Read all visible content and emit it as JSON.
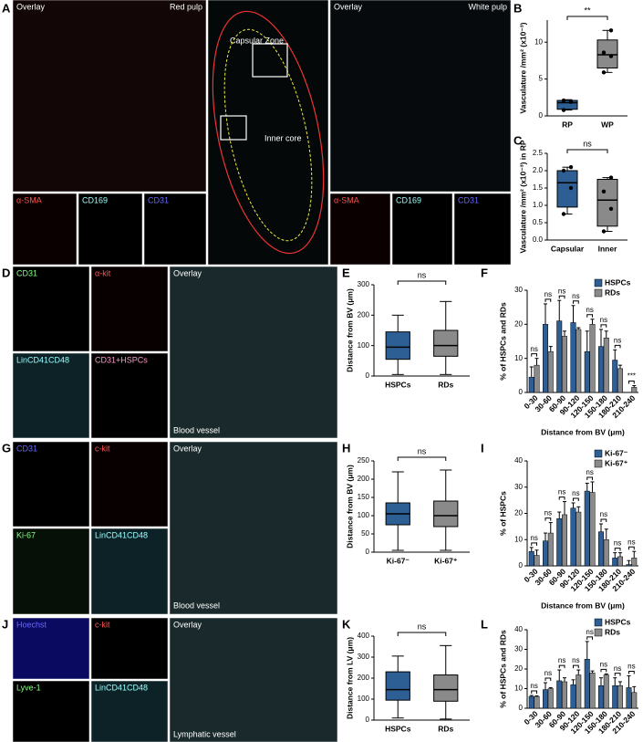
{
  "figure": {
    "image_panels": [
      {
        "letter": "A",
        "tiles": [
          "Overlay",
          "Red pulp",
          "α-SMA",
          "CD169",
          "CD31",
          "Capsular Zone",
          "Inner core",
          "Overlay",
          "White pulp",
          "α-SMA",
          "CD169",
          "CD31"
        ]
      },
      {
        "letter": "D",
        "tiles": [
          "CD31",
          "α-kit",
          "LinCD41CD48",
          "CD31+HSPCs",
          "Overlay",
          "Blood vessel"
        ]
      },
      {
        "letter": "G",
        "tiles": [
          "CD31",
          "c-kit",
          "Ki-67",
          "LinCD41CD48",
          "Overlay",
          "Blood vessel"
        ]
      },
      {
        "letter": "J",
        "tiles": [
          "Hoechst",
          "c-kit",
          "Lyve-1",
          "LinCD41CD48",
          "Overlay",
          "Lymphatic vessel"
        ]
      }
    ],
    "charts": [
      {
        "letter": "B",
        "type": "box",
        "ylabel": "Vasculature /mm² (x10⁻³)",
        "ylim": [
          0,
          13
        ],
        "yticks": [
          0,
          5,
          10
        ],
        "significance": "**",
        "series": [
          {
            "name": "RP",
            "color": "#2e5f94",
            "min": 0.8,
            "q1": 0.9,
            "median": 1.8,
            "q3": 2.1,
            "max": 2.2,
            "points": [
              0.8,
              1.9,
              2.1
            ]
          },
          {
            "name": "WP",
            "color": "#8a8a8a",
            "min": 5.9,
            "q1": 6.5,
            "median": 8.3,
            "q3": 10.3,
            "max": 11.6,
            "points": [
              5.9,
              8.1,
              8.6,
              11.6
            ]
          }
        ]
      },
      {
        "letter": "C",
        "type": "box",
        "ylabel": "Vasculature /mm² (x10⁻³) in RP",
        "ylim": [
          0,
          2.5
        ],
        "yticks": [
          {
            "value": 0,
            "label": "0.0"
          },
          {
            "value": 0.5,
            "label": "0.5"
          },
          {
            "value": 1,
            "label": "1.0"
          },
          {
            "value": 1.5,
            "label": "1.5"
          },
          {
            "value": 2,
            "label": "2.0"
          },
          {
            "value": 2.5,
            "label": "2.5"
          }
        ],
        "significance": "ns",
        "series": [
          {
            "name": "Capsular",
            "color": "#2e5f94",
            "min": 0.75,
            "q1": 0.95,
            "median": 1.65,
            "q3": 2.0,
            "max": 2.1,
            "points": [
              0.75,
              1.5,
              2.0,
              2.1
            ]
          },
          {
            "name": "Inner",
            "color": "#8a8a8a",
            "min": 0.25,
            "q1": 0.4,
            "median": 1.15,
            "q3": 1.75,
            "max": 1.8,
            "points": [
              0.25,
              0.9,
              1.4,
              1.8
            ]
          }
        ]
      },
      {
        "letter": "E",
        "type": "box",
        "ylabel": "Distance from BV (μm)",
        "ylim": [
          0,
          300
        ],
        "yticks": [
          0,
          100,
          200,
          300
        ],
        "significance": "ns",
        "series": [
          {
            "name": "HSPCs",
            "color": "#2e5f94",
            "min": 5,
            "q1": 55,
            "median": 95,
            "q3": 145,
            "max": 200
          },
          {
            "name": "RDs",
            "color": "#8a8a8a",
            "min": 5,
            "q1": 65,
            "median": 100,
            "q3": 150,
            "max": 245
          }
        ]
      },
      {
        "letter": "F",
        "type": "bar",
        "ylabel": "% of HSPCs and RDs",
        "xlabel": "Distance from BV (μm)",
        "ylim": [
          0,
          30
        ],
        "yticks": [
          0,
          10,
          20,
          30
        ],
        "categories": [
          "0-30",
          "30-60",
          "60-90",
          "90-120",
          "120-150",
          "150-180",
          "180-210",
          "210-240"
        ],
        "significance": [
          "ns",
          "ns",
          "ns",
          "ns",
          "ns",
          "ns",
          "ns",
          "***"
        ],
        "series": [
          {
            "name": "HSPCs",
            "color": "#2e5f94",
            "values": [
              4.5,
              20,
              21,
              20.5,
              12,
              13.5,
              9.5,
              0
            ],
            "errors": [
              3,
              6,
              6,
              5,
              6,
              5,
              3,
              0
            ]
          },
          {
            "name": "RDs",
            "color": "#8a8a8a",
            "values": [
              8,
              12,
              16.5,
              18.5,
              20,
              16,
              7,
              1.5
            ],
            "errors": [
              2,
              1.5,
              1.5,
              0.5,
              1.5,
              2,
              1,
              0.5
            ]
          }
        ]
      },
      {
        "letter": "H",
        "type": "box",
        "ylabel": "Distance from BV (μm)",
        "ylim": [
          0,
          250
        ],
        "yticks": [
          0,
          50,
          100,
          150,
          200,
          250
        ],
        "significance": "ns",
        "series": [
          {
            "name": "Ki-67⁻",
            "color": "#2e5f94",
            "min": 5,
            "q1": 75,
            "median": 105,
            "q3": 135,
            "max": 220
          },
          {
            "name": "Ki-67⁺",
            "color": "#8a8a8a",
            "min": 5,
            "q1": 70,
            "median": 100,
            "q3": 140,
            "max": 225
          }
        ]
      },
      {
        "letter": "I",
        "type": "bar",
        "ylabel": "% of HSPCs",
        "xlabel": "Distance from BV (μm)",
        "ylim": [
          0,
          40
        ],
        "yticks": [
          0,
          10,
          20,
          30,
          40
        ],
        "categories": [
          "0-30",
          "30-60",
          "60-90",
          "90-120",
          "120-150",
          "150-180",
          "180-210",
          "210-240"
        ],
        "significance": [
          "ns",
          "ns",
          "ns",
          "ns",
          "ns",
          "ns",
          "ns",
          "ns"
        ],
        "series": [
          {
            "name": "Ki-67⁻",
            "color": "#2e5f94",
            "values": [
              5.5,
              9.5,
              18,
              22,
              28.5,
              13,
              3,
              0.5
            ],
            "errors": [
              1.5,
              3,
              2.5,
              2,
              3,
              3,
              2,
              1.5
            ]
          },
          {
            "name": "Ki-67⁺",
            "color": "#8a8a8a",
            "values": [
              4,
              12.5,
              19.5,
              20.5,
              28,
              10,
              3.5,
              3
            ],
            "errors": [
              2,
              4,
              5,
              2,
              4,
              4,
              1.5,
              2.5
            ]
          }
        ]
      },
      {
        "letter": "K",
        "type": "box",
        "ylabel": "Distance from LV (μm)",
        "ylim": [
          0,
          400
        ],
        "yticks": [
          0,
          100,
          200,
          300,
          400
        ],
        "significance": "ns",
        "series": [
          {
            "name": "HSPCs",
            "color": "#2e5f94",
            "min": 10,
            "q1": 95,
            "median": 145,
            "q3": 230,
            "max": 305
          },
          {
            "name": "RDs",
            "color": "#8a8a8a",
            "min": 5,
            "q1": 90,
            "median": 145,
            "q3": 215,
            "max": 355
          }
        ]
      },
      {
        "letter": "L",
        "type": "bar",
        "ylabel": "% of HSPCs and RDs",
        "xlabel": "Distance from LV (μm)",
        "ylim": [
          0,
          40
        ],
        "yticks": [
          0,
          10,
          20,
          30,
          40
        ],
        "categories": [
          "0-30",
          "30-60",
          "60-90",
          "90-120",
          "120-150",
          "150-180",
          "180-210",
          "210-240"
        ],
        "significance": [
          "ns",
          "ns",
          "ns",
          "ns",
          "ns",
          "ns",
          "ns",
          "ns"
        ],
        "series": [
          {
            "name": "HSPCs",
            "color": "#2e5f94",
            "values": [
              6,
              9.5,
              14,
              12,
              25,
              11.5,
              11.5,
              10.5
            ],
            "errors": [
              0.5,
              3.5,
              5.5,
              2.5,
              9,
              4,
              4,
              6
            ]
          },
          {
            "name": "RDs",
            "color": "#8a8a8a",
            "values": [
              6,
              10,
              13.5,
              17,
              18,
              17,
              11.5,
              8
            ],
            "errors": [
              0.3,
              0.5,
              2,
              2.5,
              1,
              0.5,
              2,
              3
            ]
          }
        ]
      }
    ]
  }
}
